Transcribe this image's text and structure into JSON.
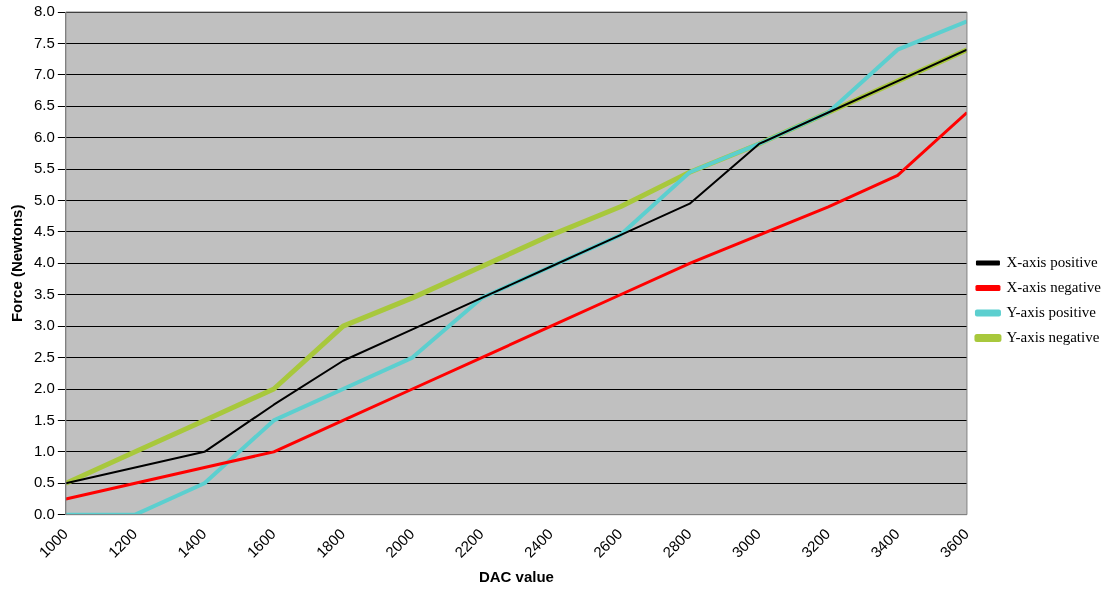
{
  "chart_data": {
    "type": "line",
    "xlabel": "DAC value",
    "ylabel": "Force (Newtons)",
    "x": [
      1000,
      1200,
      1400,
      1600,
      1800,
      2000,
      2200,
      2400,
      2600,
      2800,
      3000,
      3200,
      3400,
      3600
    ],
    "series": [
      {
        "name": "X-axis positive",
        "color": "#000000",
        "values": [
          0.5,
          0.75,
          1.0,
          1.75,
          2.45,
          2.95,
          3.45,
          3.95,
          4.45,
          4.95,
          5.9,
          6.4,
          6.9,
          7.4
        ]
      },
      {
        "name": "X-axis negative",
        "color": "#ff0000",
        "values": [
          0.25,
          0.5,
          0.75,
          1.0,
          1.5,
          2.0,
          2.5,
          3.0,
          3.5,
          4.0,
          4.45,
          4.9,
          5.4,
          6.4
        ]
      },
      {
        "name": "Y-axis positive",
        "color": "#5ccfcf",
        "values": [
          0,
          0,
          0.5,
          1.5,
          2.0,
          2.5,
          3.45,
          3.95,
          4.45,
          5.45,
          5.9,
          6.4,
          7.4,
          7.85
        ]
      },
      {
        "name": "Y-axis negative",
        "color": "#a8c83c",
        "values": [
          0.5,
          1.0,
          1.5,
          2.0,
          3.0,
          3.45,
          3.95,
          4.45,
          4.9,
          5.45,
          5.9,
          6.4,
          6.9,
          7.4
        ]
      }
    ],
    "xlim": [
      1000,
      3600
    ],
    "xticks": [
      1000,
      1200,
      1400,
      1600,
      1800,
      2000,
      2200,
      2400,
      2600,
      2800,
      3000,
      3200,
      3400,
      3600
    ],
    "ylim": [
      0,
      8
    ],
    "yticks": [
      {
        "value": 0,
        "label": "0.0"
      },
      {
        "value": 0.5,
        "label": "0.5"
      },
      {
        "value": 1,
        "label": "1.0"
      },
      {
        "value": 1.5,
        "label": "1.5"
      },
      {
        "value": 2,
        "label": "2.0"
      },
      {
        "value": 2.5,
        "label": "2.5"
      },
      {
        "value": 3,
        "label": "3.0"
      },
      {
        "value": 3.5,
        "label": "3.5"
      },
      {
        "value": 4,
        "label": "4.0"
      },
      {
        "value": 4.5,
        "label": "4.5"
      },
      {
        "value": 5,
        "label": "5.0"
      },
      {
        "value": 5.5,
        "label": "5.5"
      },
      {
        "value": 6,
        "label": "6.0"
      },
      {
        "value": 6.5,
        "label": "6.5"
      },
      {
        "value": 7,
        "label": "7.0"
      },
      {
        "value": 7.5,
        "label": "7.5"
      },
      {
        "value": 8,
        "label": "8.0"
      }
    ],
    "grid": "y",
    "legend": "right",
    "marker": "none"
  }
}
